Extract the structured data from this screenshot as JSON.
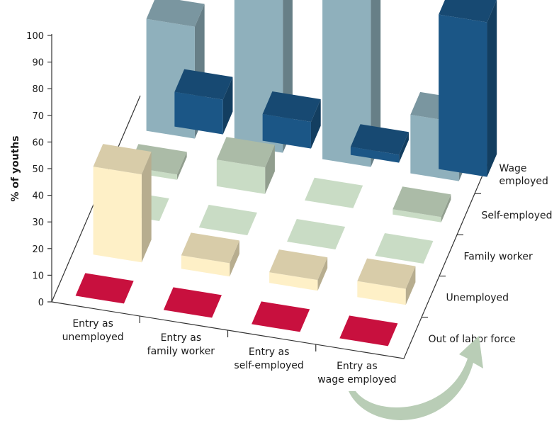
{
  "chart_data": {
    "type": "bar",
    "subtype": "3d-bar-matrix",
    "ylabel": "% of youths",
    "ylim": [
      0,
      100
    ],
    "yticks": [
      0,
      10,
      20,
      30,
      40,
      50,
      60,
      70,
      80,
      90,
      100
    ],
    "categories": [
      [
        "Entry as",
        "unemployed"
      ],
      [
        "Entry as",
        "family worker"
      ],
      [
        "Entry as",
        "self-employed"
      ],
      [
        "Entry as",
        "wage employed"
      ]
    ],
    "series": [
      {
        "name": [
          "Out of labor force"
        ],
        "color": "#c8103e",
        "values": [
          0,
          0,
          0,
          0
        ]
      },
      {
        "name": [
          "Unemployed"
        ],
        "color": "#fef0c7",
        "values": [
          33,
          5,
          4,
          6
        ]
      },
      {
        "name": [
          "Family worker"
        ],
        "color": "#c9dcc5",
        "values": [
          0,
          0,
          0,
          0
        ]
      },
      {
        "name": [
          "Self-employed"
        ],
        "color": "#c9dcc5",
        "values": [
          2,
          10,
          0,
          2
        ]
      },
      {
        "name": [
          "Wage",
          "employed"
        ],
        "color": "#8fb0bc",
        "values": [
          42,
          62,
          80,
          22
        ]
      }
    ],
    "extra_series": {
      "name": "Wage employed (dark)",
      "color": "#1b5686",
      "values": [
        13,
        10,
        3,
        58
      ]
    },
    "annotation": "curved arrow"
  }
}
